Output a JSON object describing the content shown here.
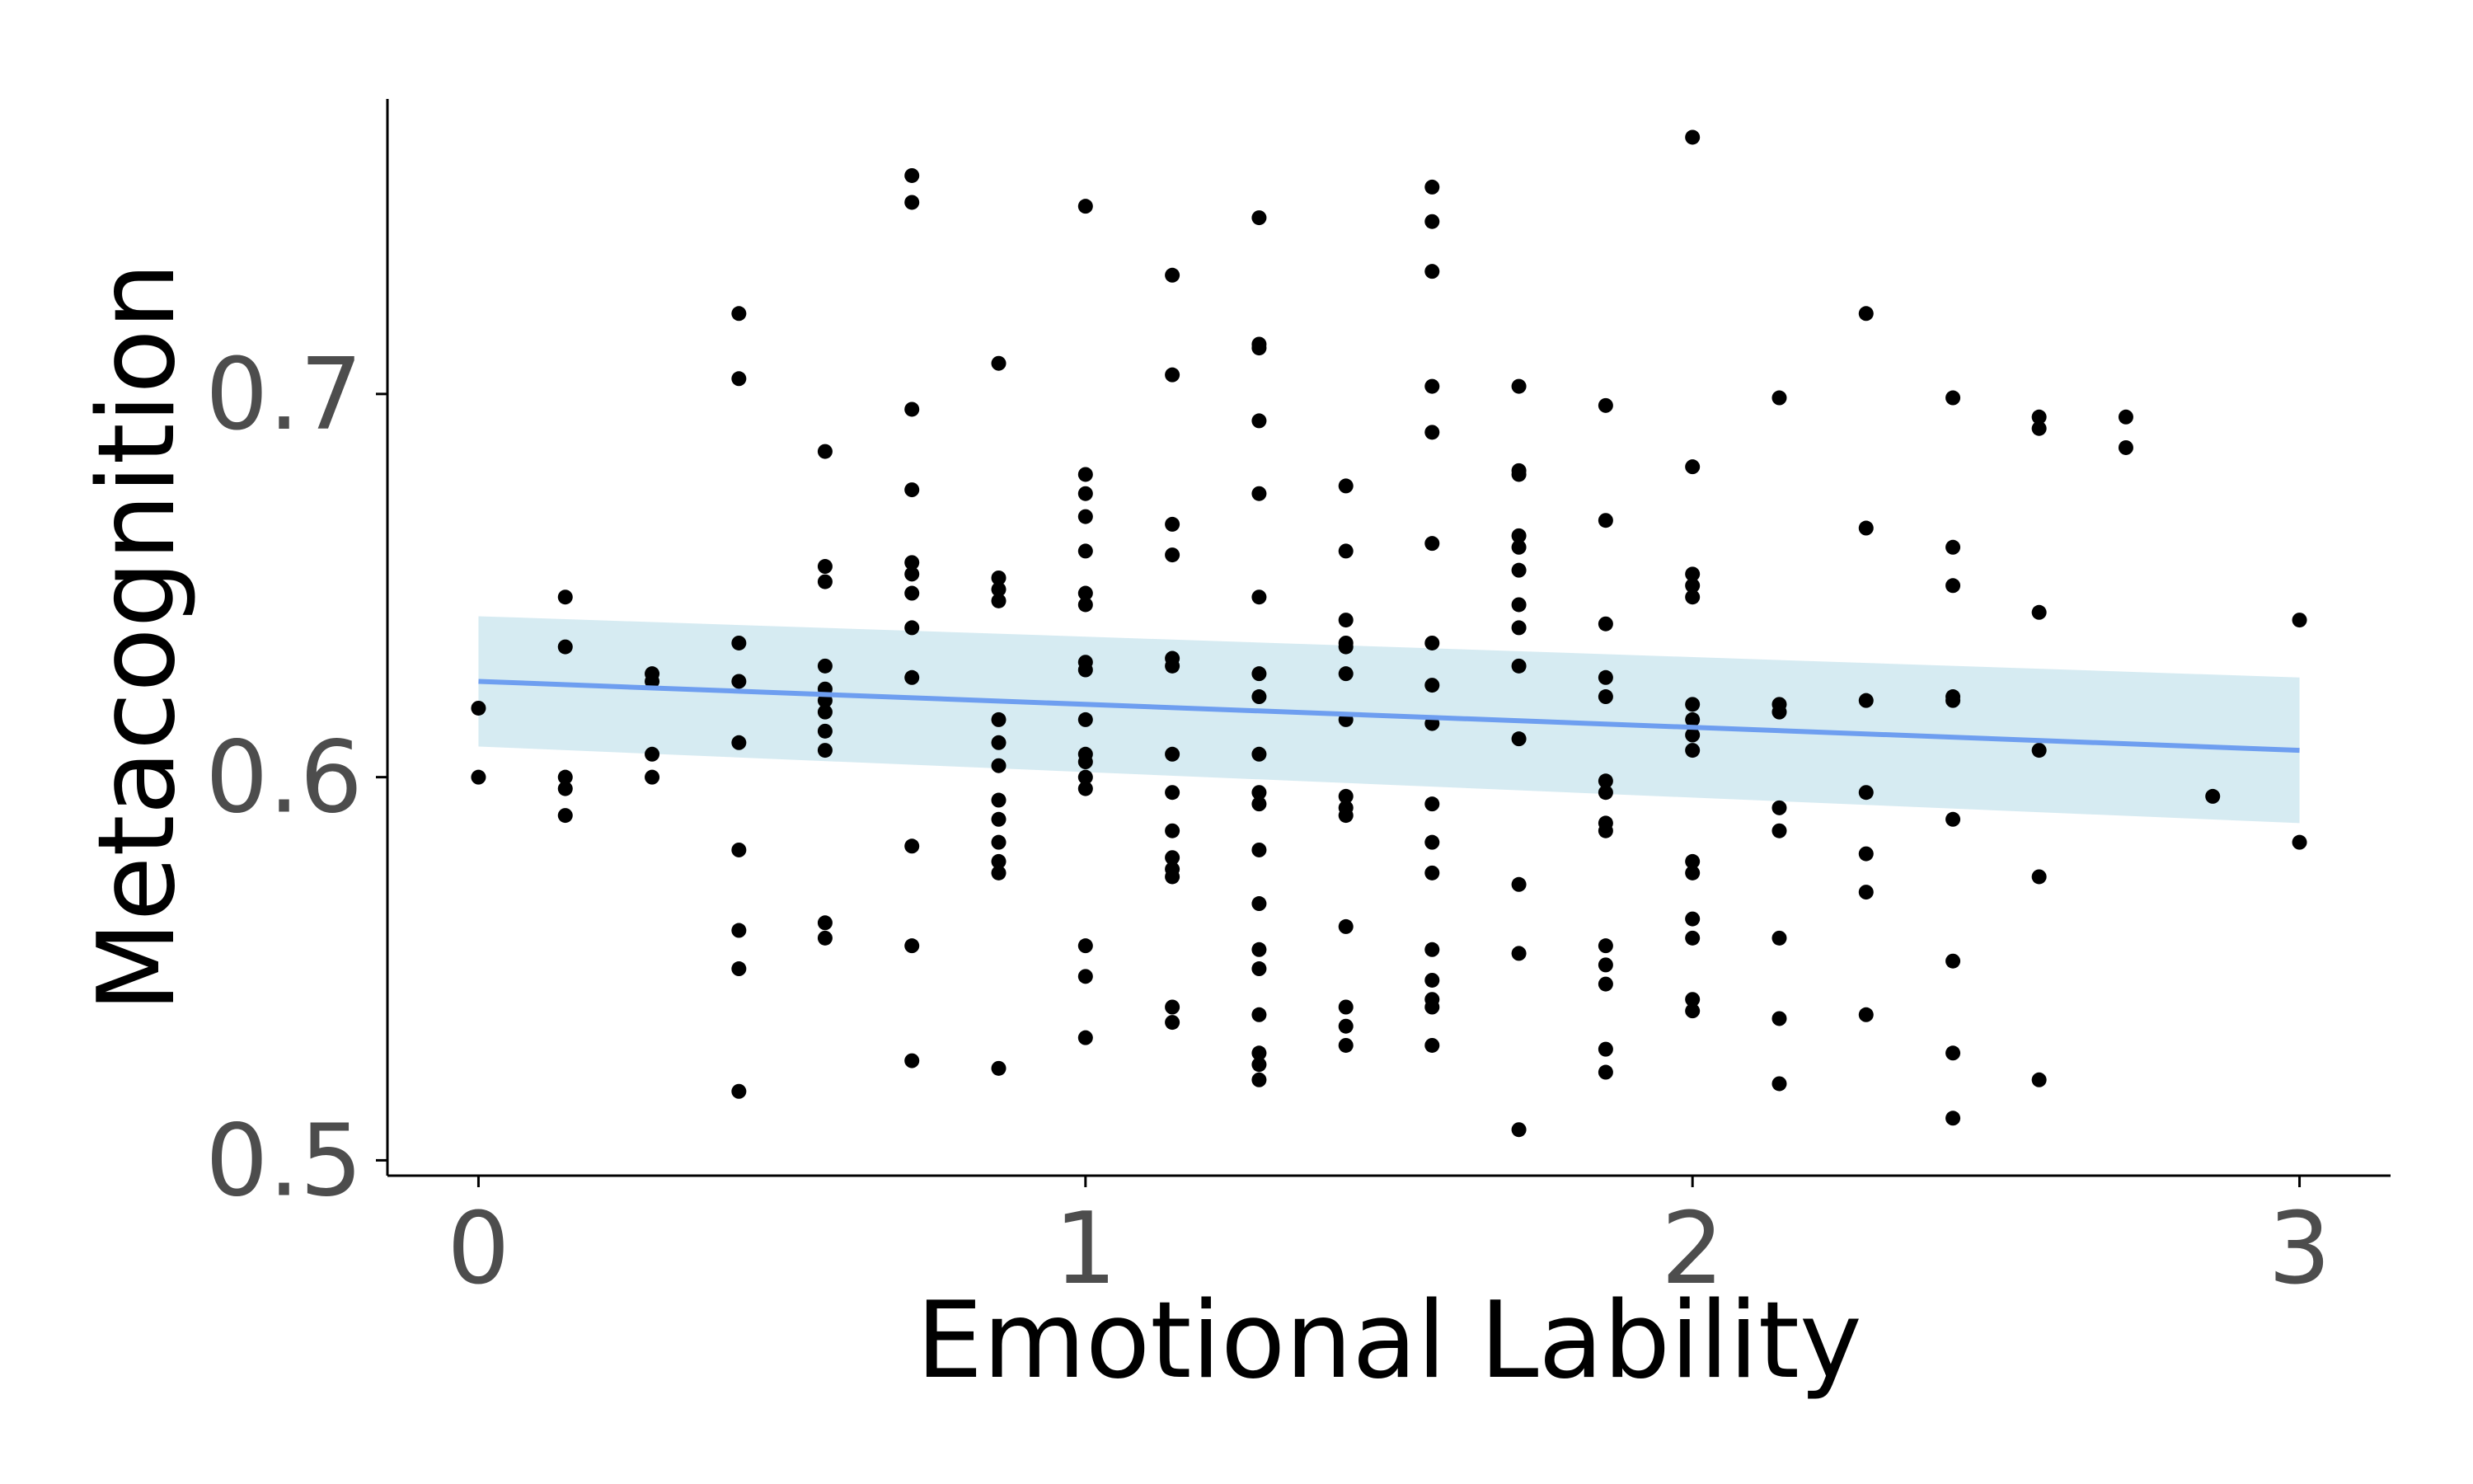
{
  "chart_data": {
    "type": "scatter",
    "title": "",
    "xlabel": "Emotional Lability",
    "ylabel": "Metacognition",
    "xlim": [
      -0.15,
      3.15
    ],
    "ylim": [
      0.496,
      0.777
    ],
    "x_ticks": [
      0,
      1,
      2,
      3
    ],
    "x_tick_labels": [
      "0",
      "1",
      "2",
      "3"
    ],
    "y_ticks": [
      0.5,
      0.6,
      0.7
    ],
    "y_tick_labels": [
      "0.5",
      "0.6",
      "0.7"
    ],
    "grid": false,
    "legend": "none",
    "colors": {
      "points": "#000000",
      "trend_line": "#6e9ef0",
      "confidence_band": "#add8e6",
      "axis": "#000000",
      "tick_label": "#4d4d4d"
    },
    "series": [
      {
        "points": [
          [
            0.0,
            0.618
          ],
          [
            0.0,
            0.6
          ],
          [
            0.143,
            0.647
          ],
          [
            0.143,
            0.634
          ],
          [
            0.143,
            0.6
          ],
          [
            0.143,
            0.597
          ],
          [
            0.143,
            0.59
          ],
          [
            0.286,
            0.627
          ],
          [
            0.286,
            0.625
          ],
          [
            0.286,
            0.606
          ],
          [
            0.286,
            0.6
          ],
          [
            0.429,
            0.721
          ],
          [
            0.429,
            0.704
          ],
          [
            0.429,
            0.635
          ],
          [
            0.429,
            0.625
          ],
          [
            0.429,
            0.609
          ],
          [
            0.429,
            0.581
          ],
          [
            0.429,
            0.56
          ],
          [
            0.429,
            0.55
          ],
          [
            0.429,
            0.518
          ],
          [
            0.571,
            0.685
          ],
          [
            0.571,
            0.655
          ],
          [
            0.571,
            0.651
          ],
          [
            0.571,
            0.629
          ],
          [
            0.571,
            0.623
          ],
          [
            0.571,
            0.62
          ],
          [
            0.571,
            0.617
          ],
          [
            0.571,
            0.612
          ],
          [
            0.571,
            0.607
          ],
          [
            0.571,
            0.562
          ],
          [
            0.571,
            0.558
          ],
          [
            0.714,
            0.757
          ],
          [
            0.714,
            0.75
          ],
          [
            0.714,
            0.696
          ],
          [
            0.714,
            0.675
          ],
          [
            0.714,
            0.656
          ],
          [
            0.714,
            0.653
          ],
          [
            0.714,
            0.648
          ],
          [
            0.714,
            0.639
          ],
          [
            0.714,
            0.626
          ],
          [
            0.714,
            0.582
          ],
          [
            0.714,
            0.556
          ],
          [
            0.714,
            0.526
          ],
          [
            0.857,
            0.708
          ],
          [
            0.857,
            0.652
          ],
          [
            0.857,
            0.649
          ],
          [
            0.857,
            0.646
          ],
          [
            0.857,
            0.615
          ],
          [
            0.857,
            0.609
          ],
          [
            0.857,
            0.603
          ],
          [
            0.857,
            0.594
          ],
          [
            0.857,
            0.589
          ],
          [
            0.857,
            0.583
          ],
          [
            0.857,
            0.578
          ],
          [
            0.857,
            0.575
          ],
          [
            0.857,
            0.524
          ],
          [
            1.0,
            0.749
          ],
          [
            1.0,
            0.679
          ],
          [
            1.0,
            0.674
          ],
          [
            1.0,
            0.668
          ],
          [
            1.0,
            0.659
          ],
          [
            1.0,
            0.648
          ],
          [
            1.0,
            0.645
          ],
          [
            1.0,
            0.63
          ],
          [
            1.0,
            0.628
          ],
          [
            1.0,
            0.615
          ],
          [
            1.0,
            0.606
          ],
          [
            1.0,
            0.604
          ],
          [
            1.0,
            0.6
          ],
          [
            1.0,
            0.597
          ],
          [
            1.0,
            0.556
          ],
          [
            1.0,
            0.548
          ],
          [
            1.0,
            0.532
          ],
          [
            1.143,
            0.731
          ],
          [
            1.143,
            0.705
          ],
          [
            1.143,
            0.666
          ],
          [
            1.143,
            0.658
          ],
          [
            1.143,
            0.631
          ],
          [
            1.143,
            0.629
          ],
          [
            1.143,
            0.606
          ],
          [
            1.143,
            0.596
          ],
          [
            1.143,
            0.586
          ],
          [
            1.143,
            0.579
          ],
          [
            1.143,
            0.576
          ],
          [
            1.143,
            0.574
          ],
          [
            1.143,
            0.54
          ],
          [
            1.143,
            0.536
          ],
          [
            1.286,
            0.746
          ],
          [
            1.286,
            0.713
          ],
          [
            1.286,
            0.712
          ],
          [
            1.286,
            0.693
          ],
          [
            1.286,
            0.674
          ],
          [
            1.286,
            0.647
          ],
          [
            1.286,
            0.627
          ],
          [
            1.286,
            0.621
          ],
          [
            1.286,
            0.606
          ],
          [
            1.286,
            0.596
          ],
          [
            1.286,
            0.593
          ],
          [
            1.286,
            0.581
          ],
          [
            1.286,
            0.567
          ],
          [
            1.286,
            0.555
          ],
          [
            1.286,
            0.55
          ],
          [
            1.286,
            0.538
          ],
          [
            1.286,
            0.528
          ],
          [
            1.286,
            0.525
          ],
          [
            1.286,
            0.521
          ],
          [
            1.429,
            0.676
          ],
          [
            1.429,
            0.659
          ],
          [
            1.429,
            0.641
          ],
          [
            1.429,
            0.635
          ],
          [
            1.429,
            0.634
          ],
          [
            1.429,
            0.627
          ],
          [
            1.429,
            0.615
          ],
          [
            1.429,
            0.595
          ],
          [
            1.429,
            0.592
          ],
          [
            1.429,
            0.59
          ],
          [
            1.429,
            0.561
          ],
          [
            1.429,
            0.54
          ],
          [
            1.429,
            0.535
          ],
          [
            1.429,
            0.53
          ],
          [
            1.571,
            0.754
          ],
          [
            1.571,
            0.745
          ],
          [
            1.571,
            0.732
          ],
          [
            1.571,
            0.702
          ],
          [
            1.571,
            0.69
          ],
          [
            1.571,
            0.661
          ],
          [
            1.571,
            0.635
          ],
          [
            1.571,
            0.624
          ],
          [
            1.571,
            0.614
          ],
          [
            1.571,
            0.593
          ],
          [
            1.571,
            0.583
          ],
          [
            1.571,
            0.575
          ],
          [
            1.571,
            0.555
          ],
          [
            1.571,
            0.547
          ],
          [
            1.571,
            0.542
          ],
          [
            1.571,
            0.54
          ],
          [
            1.571,
            0.53
          ],
          [
            1.714,
            0.702
          ],
          [
            1.714,
            0.68
          ],
          [
            1.714,
            0.679
          ],
          [
            1.714,
            0.663
          ],
          [
            1.714,
            0.66
          ],
          [
            1.714,
            0.654
          ],
          [
            1.714,
            0.645
          ],
          [
            1.714,
            0.639
          ],
          [
            1.714,
            0.629
          ],
          [
            1.714,
            0.61
          ],
          [
            1.714,
            0.572
          ],
          [
            1.714,
            0.554
          ],
          [
            1.714,
            0.508
          ],
          [
            1.857,
            0.697
          ],
          [
            1.857,
            0.667
          ],
          [
            1.857,
            0.64
          ],
          [
            1.857,
            0.626
          ],
          [
            1.857,
            0.621
          ],
          [
            1.857,
            0.599
          ],
          [
            1.857,
            0.596
          ],
          [
            1.857,
            0.588
          ],
          [
            1.857,
            0.586
          ],
          [
            1.857,
            0.556
          ],
          [
            1.857,
            0.551
          ],
          [
            1.857,
            0.546
          ],
          [
            1.857,
            0.529
          ],
          [
            1.857,
            0.523
          ],
          [
            2.0,
            0.767
          ],
          [
            2.0,
            0.681
          ],
          [
            2.0,
            0.653
          ],
          [
            2.0,
            0.65
          ],
          [
            2.0,
            0.647
          ],
          [
            2.0,
            0.619
          ],
          [
            2.0,
            0.615
          ],
          [
            2.0,
            0.611
          ],
          [
            2.0,
            0.607
          ],
          [
            2.0,
            0.578
          ],
          [
            2.0,
            0.575
          ],
          [
            2.0,
            0.563
          ],
          [
            2.0,
            0.558
          ],
          [
            2.0,
            0.542
          ],
          [
            2.0,
            0.539
          ],
          [
            2.143,
            0.699
          ],
          [
            2.143,
            0.619
          ],
          [
            2.143,
            0.617
          ],
          [
            2.143,
            0.592
          ],
          [
            2.143,
            0.586
          ],
          [
            2.143,
            0.558
          ],
          [
            2.143,
            0.537
          ],
          [
            2.143,
            0.52
          ],
          [
            2.286,
            0.721
          ],
          [
            2.286,
            0.665
          ],
          [
            2.286,
            0.62
          ],
          [
            2.286,
            0.596
          ],
          [
            2.286,
            0.58
          ],
          [
            2.286,
            0.57
          ],
          [
            2.286,
            0.538
          ],
          [
            2.429,
            0.699
          ],
          [
            2.429,
            0.66
          ],
          [
            2.429,
            0.65
          ],
          [
            2.429,
            0.621
          ],
          [
            2.429,
            0.62
          ],
          [
            2.429,
            0.589
          ],
          [
            2.429,
            0.552
          ],
          [
            2.429,
            0.528
          ],
          [
            2.429,
            0.511
          ],
          [
            2.571,
            0.694
          ],
          [
            2.571,
            0.691
          ],
          [
            2.571,
            0.643
          ],
          [
            2.571,
            0.607
          ],
          [
            2.571,
            0.574
          ],
          [
            2.571,
            0.521
          ],
          [
            2.714,
            0.694
          ],
          [
            2.714,
            0.686
          ],
          [
            2.857,
            0.595
          ],
          [
            3.0,
            0.641
          ],
          [
            3.0,
            0.583
          ]
        ]
      }
    ],
    "trend_line": {
      "x": [
        0,
        3
      ],
      "y": [
        0.625,
        0.607
      ]
    },
    "confidence_band": {
      "x": [
        0,
        3
      ],
      "lower": [
        0.608,
        0.588
      ],
      "upper": [
        0.642,
        0.626
      ]
    }
  }
}
